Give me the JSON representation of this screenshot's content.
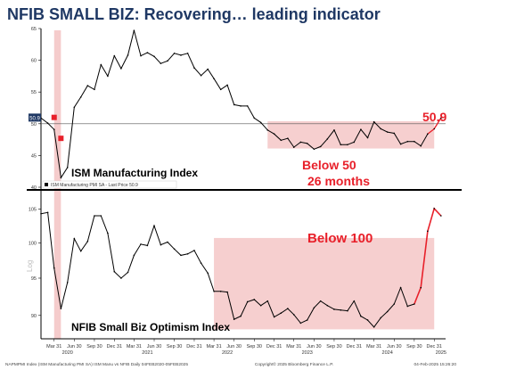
{
  "title": "NFIB SMALL BIZ: Recovering… leading indicator",
  "footer": {
    "left": "NAPMPMI Index (ISM Manufacturing PMI SA) ISM Manu vs NFIB  Daily 04FEB2020-05FEB2025",
    "center": "Copyright© 2025 Bloomberg Finance L.P.",
    "right": "04-Feb-2025 15:26:20"
  },
  "colors": {
    "line": "#000000",
    "shade": "#f4c7c7",
    "accent": "#e8202a",
    "title": "#1f3864"
  },
  "chart_data": [
    {
      "type": "line",
      "panel": "top",
      "series": [
        {
          "name": "ISM Manufacturing Index"
        }
      ],
      "legend": "ISM Manufacturing PMI SA - Last Price 50.9",
      "last_price": 50.9,
      "last_price_label": "50.9",
      "ylim": [
        40,
        65
      ],
      "yticks": [
        40,
        45,
        50,
        55,
        60,
        65
      ],
      "reference_line": 50,
      "annotations": [
        "ISM Manufacturing Index",
        "Below 50",
        "26 months",
        "50.9"
      ],
      "x": [
        "2020-01",
        "2020-02",
        "2020-03",
        "2020-04",
        "2020-05",
        "2020-06",
        "2020-07",
        "2020-08",
        "2020-09",
        "2020-10",
        "2020-11",
        "2020-12",
        "2021-01",
        "2021-02",
        "2021-03",
        "2021-04",
        "2021-05",
        "2021-06",
        "2021-07",
        "2021-08",
        "2021-09",
        "2021-10",
        "2021-11",
        "2021-12",
        "2022-01",
        "2022-02",
        "2022-03",
        "2022-04",
        "2022-05",
        "2022-06",
        "2022-07",
        "2022-08",
        "2022-09",
        "2022-10",
        "2022-11",
        "2022-12",
        "2023-01",
        "2023-02",
        "2023-03",
        "2023-04",
        "2023-05",
        "2023-06",
        "2023-07",
        "2023-08",
        "2023-09",
        "2023-10",
        "2023-11",
        "2023-12",
        "2024-01",
        "2024-02",
        "2024-03",
        "2024-04",
        "2024-05",
        "2024-06",
        "2024-07",
        "2024-08",
        "2024-09",
        "2024-10",
        "2024-11",
        "2024-12",
        "2025-01"
      ],
      "values": [
        50.9,
        50.1,
        49.1,
        41.5,
        43.1,
        52.6,
        54.2,
        56.0,
        55.4,
        59.3,
        57.5,
        60.7,
        58.7,
        60.8,
        64.7,
        60.7,
        61.2,
        60.6,
        59.5,
        59.9,
        61.1,
        60.8,
        61.1,
        58.8,
        57.6,
        58.6,
        57.1,
        55.4,
        56.1,
        53.0,
        52.8,
        52.8,
        50.9,
        50.2,
        49.0,
        48.4,
        47.4,
        47.7,
        46.3,
        47.1,
        46.9,
        46.0,
        46.4,
        47.6,
        49.0,
        46.7,
        46.7,
        47.1,
        49.1,
        47.8,
        50.3,
        49.2,
        48.7,
        48.5,
        46.8,
        47.2,
        47.2,
        46.5,
        48.4,
        49.2,
        50.9
      ],
      "shaded": [
        {
          "from": "2020-03",
          "to": "2020-04",
          "label": ""
        },
        {
          "from": "2022-11",
          "to": "2024-12",
          "label": "Below 50"
        }
      ]
    },
    {
      "type": "line",
      "panel": "bottom",
      "series": [
        {
          "name": "NFIB Small Biz Optimism Index"
        }
      ],
      "ylim": [
        87,
        107
      ],
      "yticks": [
        90,
        95,
        100,
        105
      ],
      "ylabel": "Log",
      "annotations": [
        "NFIB Small Biz Optimism Index",
        "Below 100"
      ],
      "x": [
        "2020-01",
        "2020-02",
        "2020-03",
        "2020-04",
        "2020-05",
        "2020-06",
        "2020-07",
        "2020-08",
        "2020-09",
        "2020-10",
        "2020-11",
        "2020-12",
        "2021-01",
        "2021-02",
        "2021-03",
        "2021-04",
        "2021-05",
        "2021-06",
        "2021-07",
        "2021-08",
        "2021-09",
        "2021-10",
        "2021-11",
        "2021-12",
        "2022-01",
        "2022-02",
        "2022-03",
        "2022-04",
        "2022-05",
        "2022-06",
        "2022-07",
        "2022-08",
        "2022-09",
        "2022-10",
        "2022-11",
        "2022-12",
        "2023-01",
        "2023-02",
        "2023-03",
        "2023-04",
        "2023-05",
        "2023-06",
        "2023-07",
        "2023-08",
        "2023-09",
        "2023-10",
        "2023-11",
        "2023-12",
        "2024-01",
        "2024-02",
        "2024-03",
        "2024-04",
        "2024-05",
        "2024-06",
        "2024-07",
        "2024-08",
        "2024-09",
        "2024-10",
        "2024-11",
        "2024-12",
        "2025-01"
      ],
      "values": [
        104.3,
        104.5,
        96.4,
        90.9,
        94.4,
        100.6,
        98.8,
        100.2,
        104.0,
        104.0,
        101.4,
        95.9,
        95.0,
        95.8,
        98.2,
        99.8,
        99.6,
        102.5,
        99.7,
        100.1,
        99.1,
        98.2,
        98.4,
        98.9,
        97.1,
        95.7,
        93.2,
        93.2,
        93.1,
        89.5,
        89.9,
        91.8,
        92.1,
        91.3,
        91.9,
        89.8,
        90.3,
        90.9,
        90.1,
        89.0,
        89.4,
        91.0,
        91.9,
        91.3,
        90.8,
        90.7,
        90.6,
        91.9,
        89.9,
        89.4,
        88.5,
        89.7,
        90.5,
        91.5,
        93.7,
        91.2,
        91.5,
        93.7,
        101.7,
        105.1,
        104.0
      ],
      "shaded": [
        {
          "from": "2020-03",
          "to": "2020-04",
          "label": ""
        },
        {
          "from": "2022-03",
          "to": "2024-12",
          "label": "Below 100"
        }
      ]
    }
  ],
  "x_axis": {
    "month_labels": [
      {
        "date": "2020-03",
        "label": "Mar 31"
      },
      {
        "date": "2020-06",
        "label": "Jun 30"
      },
      {
        "date": "2020-09",
        "label": "Sep 30"
      },
      {
        "date": "2020-12",
        "label": "Dec 31"
      },
      {
        "date": "2021-03",
        "label": "Mar 31"
      },
      {
        "date": "2021-06",
        "label": "Jun 30"
      },
      {
        "date": "2021-09",
        "label": "Sep 30"
      },
      {
        "date": "2021-12",
        "label": "Dec 31"
      },
      {
        "date": "2022-03",
        "label": "Mar 31"
      },
      {
        "date": "2022-06",
        "label": "Jun 30"
      },
      {
        "date": "2022-09",
        "label": "Sep 30"
      },
      {
        "date": "2022-12",
        "label": "Dec 31"
      },
      {
        "date": "2023-03",
        "label": "Mar 31"
      },
      {
        "date": "2023-06",
        "label": "Jun 30"
      },
      {
        "date": "2023-09",
        "label": "Sep 30"
      },
      {
        "date": "2023-12",
        "label": "Dec 31"
      },
      {
        "date": "2024-03",
        "label": "Mar 31"
      },
      {
        "date": "2024-06",
        "label": "Jun 30"
      },
      {
        "date": "2024-09",
        "label": "Sep 30"
      },
      {
        "date": "2024-12",
        "label": "Dec 31"
      }
    ],
    "year_labels": [
      {
        "date": "2020-05",
        "label": "2020"
      },
      {
        "date": "2021-05",
        "label": "2021"
      },
      {
        "date": "2022-05",
        "label": "2022"
      },
      {
        "date": "2023-05",
        "label": "2023"
      },
      {
        "date": "2024-05",
        "label": "2024"
      },
      {
        "date": "2025-01",
        "label": "2025"
      }
    ]
  }
}
